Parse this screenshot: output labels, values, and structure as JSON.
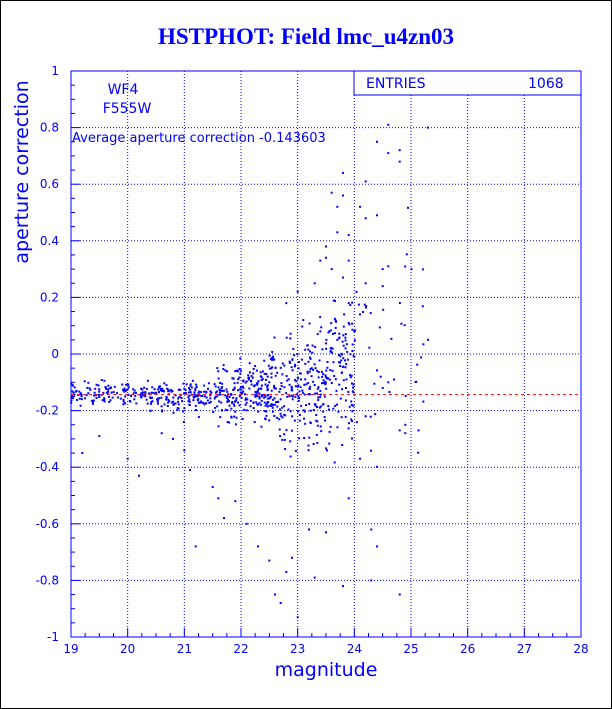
{
  "title": "HSTPHOT: Field lmc_u4zn03",
  "colors": {
    "accent": "#0000ff",
    "reference_line": "#ff0000",
    "background": "#ffffff"
  },
  "chart_data": {
    "type": "scatter",
    "title": "HSTPHOT: Field lmc_u4zn03",
    "xlabel": "magnitude",
    "ylabel": "aperture correction",
    "xlim": [
      19,
      28
    ],
    "ylim": [
      -1,
      1
    ],
    "x_ticks": [
      "19",
      "20",
      "21",
      "22",
      "23",
      "24",
      "25",
      "26",
      "27",
      "28"
    ],
    "y_ticks": [
      "-1",
      "-0.8",
      "-0.6",
      "-0.4",
      "-0.2",
      "0",
      "0.2",
      "0.4",
      "0.6",
      "0.8",
      "1"
    ],
    "grid": true,
    "labels": {
      "chip": "WF4",
      "filter": "F555W"
    },
    "stats_box": {
      "label": "ENTRIES",
      "value": "1068"
    },
    "annotation": "Average aperture correction -0.143603",
    "average_line_y": -0.143603,
    "clusters": [
      {
        "x_range": [
          19.0,
          20.4
        ],
        "y_mean": -0.14,
        "y_spread": 0.035,
        "count": 130
      },
      {
        "x_range": [
          20.4,
          21.5
        ],
        "y_mean": -0.15,
        "y_spread": 0.05,
        "count": 150
      },
      {
        "x_range": [
          21.5,
          22.5
        ],
        "y_mean": -0.14,
        "y_spread": 0.09,
        "count": 210
      },
      {
        "x_range": [
          22.5,
          23.5
        ],
        "y_mean": -0.12,
        "y_spread": 0.16,
        "count": 230
      },
      {
        "x_range": [
          23.5,
          24.0
        ],
        "y_mean": -0.05,
        "y_spread": 0.22,
        "count": 120
      },
      {
        "x_range": [
          24.0,
          25.3
        ],
        "y_mean": 0.05,
        "y_spread": 0.35,
        "count": 40
      }
    ],
    "points": [
      [
        19.2,
        -0.35
      ],
      [
        19.5,
        -0.29
      ],
      [
        20.0,
        -0.37
      ],
      [
        20.2,
        -0.43
      ],
      [
        20.6,
        -0.28
      ],
      [
        20.8,
        -0.3
      ],
      [
        21.0,
        -0.34
      ],
      [
        21.1,
        -0.41
      ],
      [
        21.2,
        -0.68
      ],
      [
        21.5,
        -0.47
      ],
      [
        21.6,
        -0.51
      ],
      [
        21.7,
        -0.58
      ],
      [
        21.9,
        -0.52
      ],
      [
        22.1,
        -0.6
      ],
      [
        22.3,
        -0.68
      ],
      [
        22.5,
        -0.73
      ],
      [
        22.6,
        -0.85
      ],
      [
        22.7,
        -0.88
      ],
      [
        22.8,
        -0.77
      ],
      [
        22.9,
        -0.72
      ],
      [
        23.0,
        -0.93
      ],
      [
        23.2,
        -0.62
      ],
      [
        23.3,
        -0.79
      ],
      [
        23.5,
        -0.63
      ],
      [
        23.9,
        -0.51
      ],
      [
        24.1,
        -0.37
      ],
      [
        24.3,
        -0.62
      ],
      [
        24.4,
        -0.68
      ],
      [
        24.3,
        -0.8
      ],
      [
        23.8,
        -0.82
      ],
      [
        24.2,
        -0.22
      ],
      [
        24.5,
        -0.12
      ],
      [
        24.6,
        -0.1
      ],
      [
        24.7,
        -0.09
      ],
      [
        24.8,
        -0.27
      ],
      [
        24.9,
        -0.25
      ],
      [
        24.9,
        -0.28
      ],
      [
        24.8,
        -0.85
      ],
      [
        25.3,
        0.05
      ],
      [
        25.3,
        0.8
      ],
      [
        24.2,
        0.61
      ],
      [
        24.4,
        0.75
      ],
      [
        24.6,
        0.71
      ],
      [
        24.6,
        0.81
      ],
      [
        24.8,
        0.72
      ],
      [
        24.8,
        0.68
      ],
      [
        24.1,
        0.52
      ],
      [
        24.2,
        0.48
      ],
      [
        24.4,
        0.49
      ],
      [
        24.5,
        0.3
      ],
      [
        24.6,
        0.31
      ],
      [
        24.5,
        0.24
      ],
      [
        24.1,
        0.14
      ],
      [
        24.2,
        0.25
      ],
      [
        23.9,
        0.42
      ],
      [
        23.8,
        0.64
      ],
      [
        23.8,
        0.56
      ],
      [
        23.9,
        0.33
      ],
      [
        23.6,
        0.57
      ],
      [
        23.7,
        0.52
      ],
      [
        23.7,
        0.43
      ],
      [
        23.8,
        0.27
      ],
      [
        23.4,
        0.33
      ],
      [
        23.5,
        0.38
      ],
      [
        23.5,
        0.34
      ],
      [
        23.6,
        0.3
      ],
      [
        23.3,
        0.25
      ],
      [
        23.0,
        0.22
      ],
      [
        22.8,
        0.18
      ],
      [
        23.1,
        0.12
      ],
      [
        23.9,
        0.18
      ],
      [
        23.9,
        0.11
      ],
      [
        24.0,
        0.08
      ],
      [
        23.7,
        0.05
      ],
      [
        23.4,
        0.08
      ]
    ]
  }
}
